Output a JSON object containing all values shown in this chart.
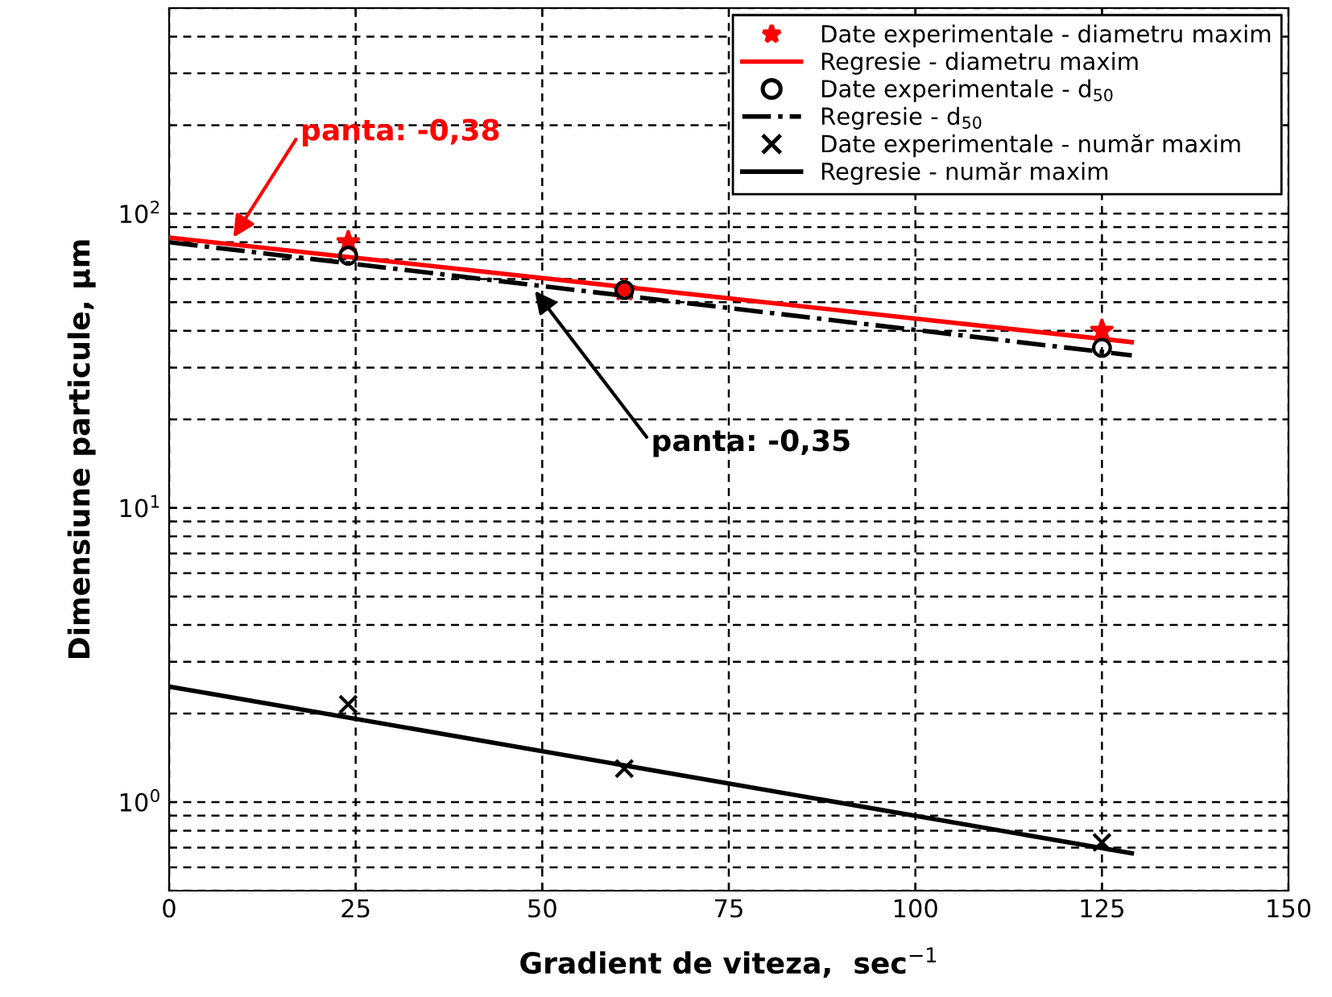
{
  "chart_data": {
    "type": "scatter",
    "xlabel": "Gradient de viteza,  sec$^{−1}$",
    "ylabel": "Dimensiune particule, μm",
    "xlim": [
      0,
      150
    ],
    "xticks": [
      0,
      25,
      50,
      75,
      100,
      125,
      150
    ],
    "ylim": [
      0.5,
      500
    ],
    "yticks": [
      {
        "value": 1,
        "label": "10$^{0}$"
      },
      {
        "value": 10,
        "label": "10$^{1}$"
      },
      {
        "value": 100,
        "label": "10$^{2}$"
      }
    ],
    "log": "y",
    "grid": true,
    "legend": "top right",
    "series": [
      {
        "name": "Date experimentale - diametru maxim",
        "marker": "star",
        "color": "#ff0000",
        "x": [
          24,
          61,
          125
        ],
        "values": [
          80,
          55,
          40
        ]
      },
      {
        "name": "Regresie - diametru maxim",
        "type": "line",
        "color": "#ff0000",
        "line_style": "solid",
        "x": [
          0,
          129
        ],
        "values": [
          83,
          36.6
        ]
      },
      {
        "name": "Date experimentale - d$_{50}$",
        "marker": "circle",
        "color": "#000000",
        "x": [
          24,
          61,
          125
        ],
        "values": [
          72,
          55,
          35
        ]
      },
      {
        "name": "Regresie - d$_{50}$",
        "type": "line",
        "color": "#000000",
        "line_style": "dashdot",
        "x": [
          0,
          129
        ],
        "values": [
          80,
          33
        ]
      },
      {
        "name": "Date experimentale - număr maxim",
        "marker": "cross",
        "color": "#000000",
        "x": [
          24,
          61,
          125
        ],
        "values": [
          2.15,
          1.3,
          0.73
        ]
      },
      {
        "name": "Regresie - număr maxim",
        "type": "line",
        "color": "#000000",
        "line_style": "solid",
        "x": [
          0,
          129
        ],
        "values": [
          2.47,
          0.67
        ]
      }
    ],
    "annotations": [
      {
        "text": "panta: -0,38",
        "x": 8.6,
        "y": 83
      },
      {
        "text": "panta: -0,35",
        "x": 49,
        "y": 54.7
      }
    ]
  }
}
